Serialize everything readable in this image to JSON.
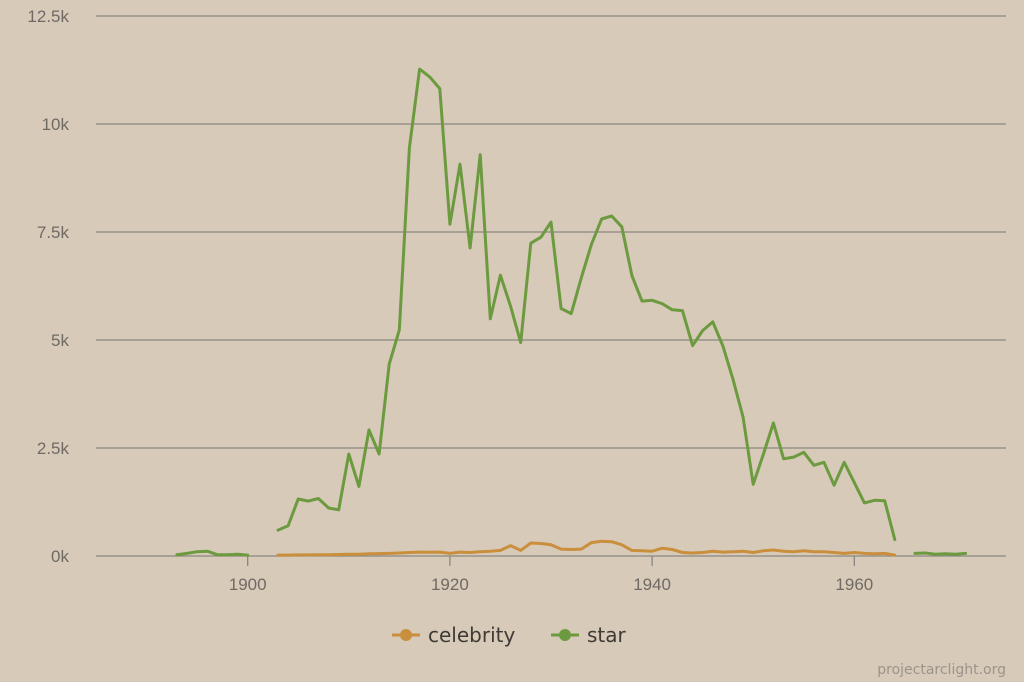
{
  "chart_data": {
    "type": "line",
    "x_ticks": [
      1900,
      1920,
      1940,
      1960
    ],
    "y_ticks": [
      {
        "value": 0,
        "label": "0k"
      },
      {
        "value": 2500,
        "label": "2.5k"
      },
      {
        "value": 5000,
        "label": "5k"
      },
      {
        "value": 7500,
        "label": "7.5k"
      },
      {
        "value": 10000,
        "label": "10k"
      },
      {
        "value": 12500,
        "label": "12.5k"
      }
    ],
    "xlim": [
      1885,
      1975
    ],
    "ylim": [
      0,
      12500
    ],
    "grid": true,
    "legend_position": "bottom-center",
    "series": [
      {
        "name": "celebrity",
        "color": "#c98f3c",
        "points": [
          [
            1903,
            20
          ],
          [
            1904,
            20
          ],
          [
            1905,
            25
          ],
          [
            1906,
            25
          ],
          [
            1907,
            30
          ],
          [
            1908,
            30
          ],
          [
            1909,
            35
          ],
          [
            1910,
            40
          ],
          [
            1911,
            40
          ],
          [
            1912,
            50
          ],
          [
            1913,
            55
          ],
          [
            1914,
            60
          ],
          [
            1915,
            70
          ],
          [
            1916,
            80
          ],
          [
            1917,
            90
          ],
          [
            1918,
            85
          ],
          [
            1919,
            90
          ],
          [
            1920,
            60
          ],
          [
            1921,
            90
          ],
          [
            1922,
            80
          ],
          [
            1923,
            100
          ],
          [
            1924,
            110
          ],
          [
            1925,
            130
          ],
          [
            1926,
            240
          ],
          [
            1927,
            130
          ],
          [
            1928,
            300
          ],
          [
            1929,
            290
          ],
          [
            1930,
            260
          ],
          [
            1931,
            160
          ],
          [
            1932,
            150
          ],
          [
            1933,
            160
          ],
          [
            1934,
            310
          ],
          [
            1935,
            340
          ],
          [
            1936,
            330
          ],
          [
            1937,
            260
          ],
          [
            1938,
            130
          ],
          [
            1939,
            120
          ],
          [
            1940,
            110
          ],
          [
            1941,
            180
          ],
          [
            1942,
            150
          ],
          [
            1943,
            80
          ],
          [
            1944,
            70
          ],
          [
            1945,
            80
          ],
          [
            1946,
            110
          ],
          [
            1947,
            90
          ],
          [
            1948,
            100
          ],
          [
            1949,
            110
          ],
          [
            1950,
            80
          ],
          [
            1951,
            120
          ],
          [
            1952,
            140
          ],
          [
            1953,
            110
          ],
          [
            1954,
            100
          ],
          [
            1955,
            120
          ],
          [
            1956,
            100
          ],
          [
            1957,
            100
          ],
          [
            1958,
            80
          ],
          [
            1959,
            60
          ],
          [
            1960,
            80
          ],
          [
            1961,
            60
          ],
          [
            1962,
            50
          ],
          [
            1963,
            60
          ],
          [
            1964,
            20
          ]
        ]
      },
      {
        "name": "star",
        "color": "#6c9a3f",
        "segments": [
          [
            [
              1893,
              30
            ],
            [
              1894,
              60
            ],
            [
              1895,
              100
            ],
            [
              1896,
              110
            ],
            [
              1897,
              30
            ],
            [
              1898,
              30
            ],
            [
              1899,
              40
            ],
            [
              1900,
              20
            ]
          ],
          [
            [
              1903,
              600
            ],
            [
              1904,
              700
            ],
            [
              1905,
              1320
            ],
            [
              1906,
              1270
            ],
            [
              1907,
              1330
            ],
            [
              1908,
              1110
            ],
            [
              1909,
              1070
            ],
            [
              1910,
              2360
            ],
            [
              1911,
              1610
            ],
            [
              1912,
              2920
            ],
            [
              1913,
              2360
            ],
            [
              1914,
              4440
            ],
            [
              1915,
              5230
            ],
            [
              1916,
              9450
            ],
            [
              1917,
              11270
            ],
            [
              1918,
              11090
            ],
            [
              1919,
              10820
            ],
            [
              1920,
              7680
            ],
            [
              1921,
              9070
            ],
            [
              1922,
              7130
            ],
            [
              1923,
              9290
            ],
            [
              1924,
              5490
            ],
            [
              1925,
              6500
            ],
            [
              1926,
              5780
            ],
            [
              1927,
              4940
            ],
            [
              1928,
              7240
            ],
            [
              1929,
              7380
            ],
            [
              1930,
              7730
            ],
            [
              1931,
              5730
            ],
            [
              1932,
              5610
            ],
            [
              1933,
              6440
            ],
            [
              1934,
              7210
            ],
            [
              1935,
              7800
            ],
            [
              1936,
              7870
            ],
            [
              1937,
              7620
            ],
            [
              1938,
              6490
            ],
            [
              1939,
              5900
            ],
            [
              1940,
              5920
            ],
            [
              1941,
              5840
            ],
            [
              1942,
              5700
            ],
            [
              1943,
              5680
            ],
            [
              1944,
              4870
            ],
            [
              1945,
              5220
            ],
            [
              1946,
              5420
            ],
            [
              1947,
              4860
            ],
            [
              1948,
              4090
            ],
            [
              1949,
              3210
            ],
            [
              1950,
              1660
            ],
            [
              1951,
              2350
            ],
            [
              1952,
              3080
            ],
            [
              1953,
              2250
            ],
            [
              1954,
              2290
            ],
            [
              1955,
              2400
            ],
            [
              1956,
              2100
            ],
            [
              1957,
              2170
            ],
            [
              1958,
              1640
            ],
            [
              1959,
              2170
            ],
            [
              1960,
              1700
            ],
            [
              1961,
              1230
            ],
            [
              1962,
              1290
            ],
            [
              1963,
              1280
            ],
            [
              1964,
              380
            ]
          ],
          [
            [
              1966,
              60
            ],
            [
              1967,
              70
            ],
            [
              1968,
              40
            ],
            [
              1969,
              50
            ],
            [
              1970,
              40
            ],
            [
              1971,
              60
            ]
          ]
        ]
      }
    ]
  },
  "credit": "projectarclight.org",
  "colors": {
    "background": "#d7cab8",
    "grid": "#8a8780"
  }
}
